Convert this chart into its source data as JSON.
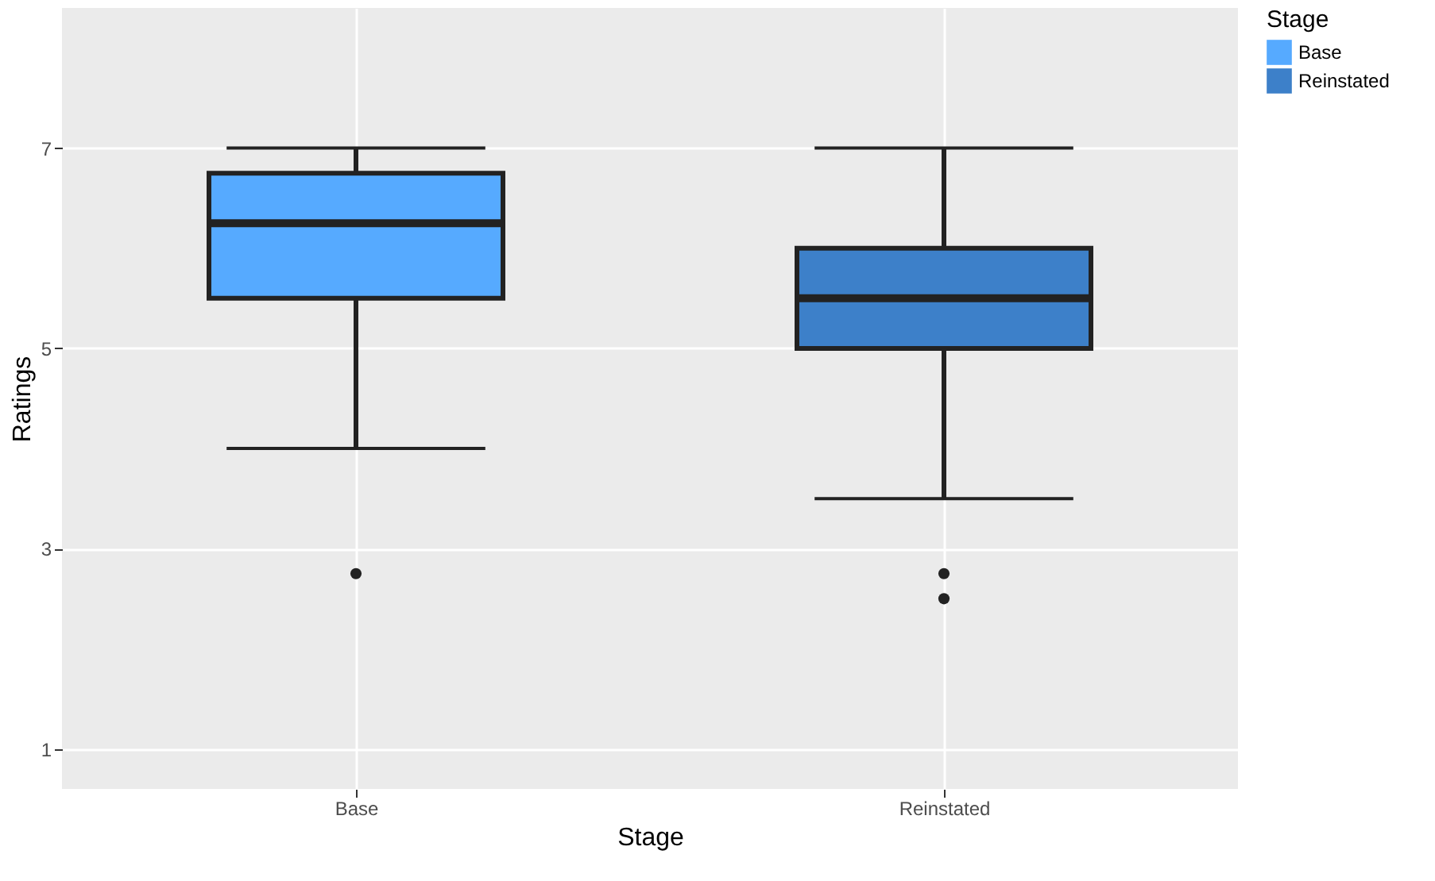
{
  "chart_data": {
    "type": "box",
    "xlabel": "Stage",
    "ylabel": "Ratings",
    "legend_title": "Stage",
    "legend": "right",
    "grid": true,
    "categories": [
      "Base",
      "Reinstated"
    ],
    "series": [
      {
        "name": "Base",
        "color": "#56aaff",
        "boxes": [
          {
            "low": 4,
            "q1": 5.5,
            "median": 6.25,
            "q3": 6.75,
            "high": 7,
            "outliers": [
              2.75
            ]
          },
          null
        ]
      },
      {
        "name": "Reinstated",
        "color": "#3d80c9",
        "boxes": [
          null,
          {
            "low": 3.5,
            "q1": 5,
            "median": 5.5,
            "q3": 6,
            "high": 7,
            "outliers": [
              2.75,
              2.5
            ]
          }
        ]
      }
    ],
    "ylim": [
      0.6,
      8.4
    ],
    "yticks": [
      1,
      3,
      5,
      7
    ]
  }
}
